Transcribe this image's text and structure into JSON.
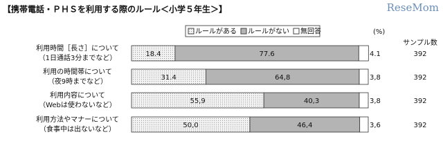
{
  "chart_data": {
    "type": "stacked-bar-horizontal",
    "title": "【携帯電話・ＰＨＳを利用する際のルール＜小学５年生＞】",
    "watermark": "ReseMom",
    "unit_label": "(%)",
    "sample_header": "サンプル数",
    "categories": [
      [
        "利用時間［長さ］について",
        "（1日通話3分までなど）"
      ],
      [
        "利用の時間帯について",
        "（夜9時までなど）"
      ],
      [
        "利用内容について",
        "（Webは使わないなど）"
      ],
      [
        "利用方法やマナーについて",
        "（食事中は出ないなど）"
      ]
    ],
    "samples": [
      392,
      392,
      392,
      392
    ],
    "xlim": [
      0,
      100
    ],
    "series": [
      {
        "name": "ルールがある",
        "color": "#e6e6e6",
        "values": [
          18.4,
          31.4,
          55.9,
          50.0
        ],
        "value_labels": [
          "18.4",
          "31.4",
          "55,9",
          "50,0"
        ]
      },
      {
        "name": "ルールがない",
        "color": "#b4b4b4",
        "values": [
          77.6,
          64.8,
          40.3,
          46.4
        ],
        "value_labels": [
          "77.6",
          "64,8",
          "40,3",
          "46,4"
        ]
      },
      {
        "name": "無回答",
        "color": "#ffffff",
        "values": [
          4.1,
          3.8,
          3.8,
          3.6
        ],
        "value_labels": [
          "4.1",
          "3,8",
          "3,8",
          "3,6"
        ]
      }
    ]
  }
}
